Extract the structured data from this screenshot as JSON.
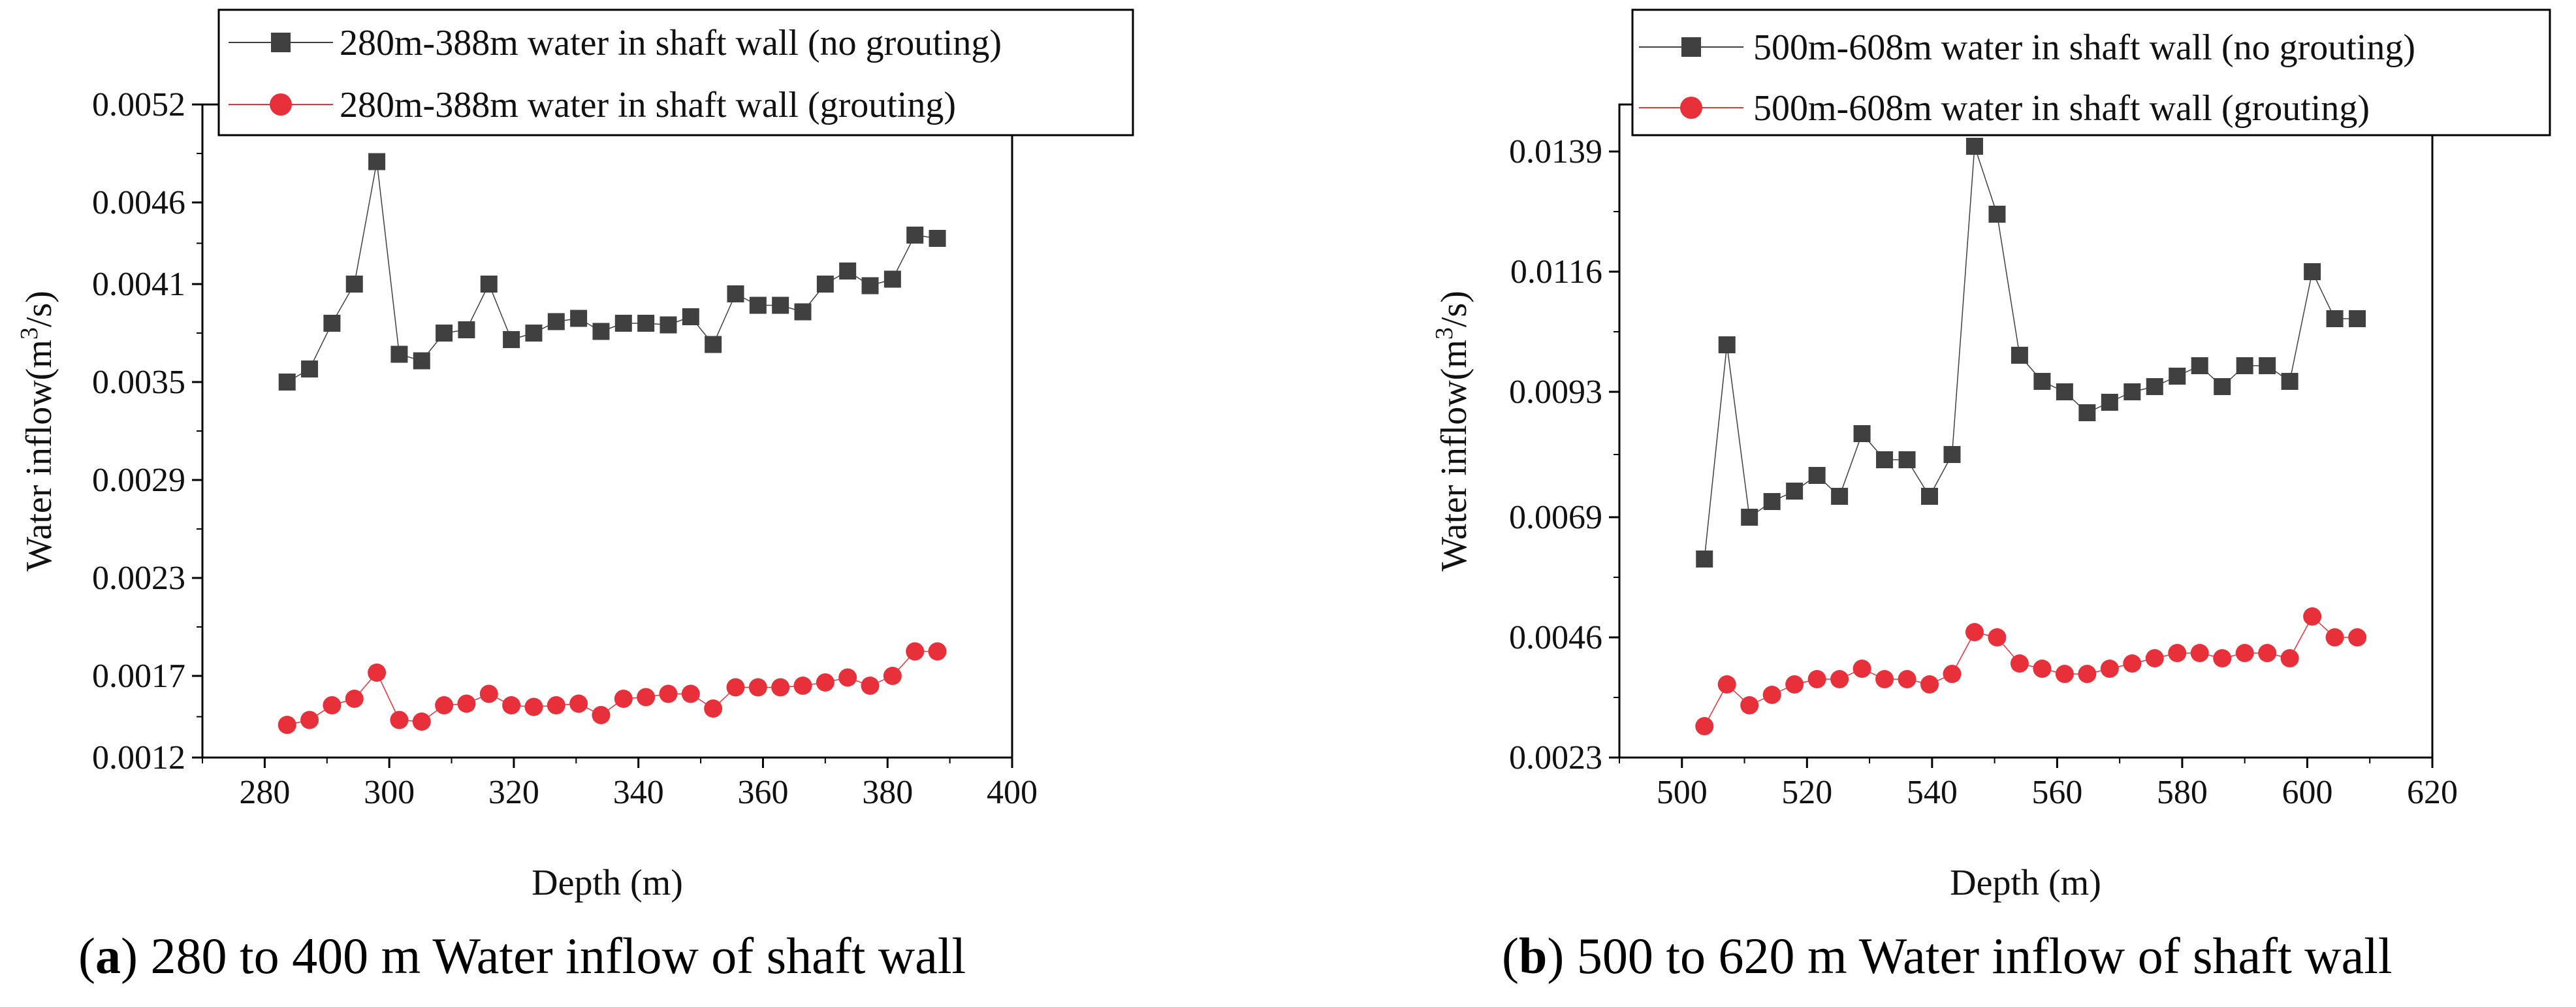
{
  "chart_data": [
    {
      "type": "line",
      "panel": "a",
      "xlabel": "Depth (m)",
      "ylabel_main": "Water inflow(m",
      "ylabel_sup": "3",
      "ylabel_end": "/s)",
      "xlim": [
        270,
        400
      ],
      "ylim": [
        0.0012,
        0.0052
      ],
      "xticks": [
        280,
        300,
        320,
        340,
        360,
        380,
        400
      ],
      "yticks": [
        0.0012,
        0.0017,
        0.0023,
        0.0029,
        0.0035,
        0.0041,
        0.0046,
        0.0052
      ],
      "ytick_labels": [
        "0.0012",
        "0.0017",
        "0.0023",
        "0.0029",
        "0.0035",
        "0.0041",
        "0.0046",
        "0.0052"
      ],
      "legend_position": "top",
      "caption_letter": "a",
      "caption_text": " 280 to 400 m Water inflow of shaft wall",
      "series": [
        {
          "name": "280m-388m water in shaft wall (no grouting)",
          "color": "#404040",
          "marker": "square",
          "x": [
            283.6,
            287.2,
            290.8,
            294.4,
            298.0,
            301.6,
            305.2,
            308.8,
            312.4,
            316.0,
            319.6,
            323.2,
            326.8,
            330.4,
            334.0,
            337.6,
            341.2,
            344.8,
            348.4,
            352.0,
            355.6,
            359.2,
            362.8,
            366.4,
            370.0,
            373.6,
            377.2,
            380.8,
            384.4,
            388.0
          ],
          "y": [
            0.0035,
            0.00358,
            0.00386,
            0.0041,
            0.00485,
            0.00367,
            0.00363,
            0.0038,
            0.00382,
            0.0041,
            0.00376,
            0.0038,
            0.00387,
            0.00389,
            0.00381,
            0.00386,
            0.00386,
            0.00385,
            0.0039,
            0.00373,
            0.00404,
            0.00397,
            0.00397,
            0.00393,
            0.0041,
            0.00418,
            0.00409,
            0.00413,
            0.0044,
            0.00438
          ]
        },
        {
          "name": "280m-388m water in shaft wall (grouting)",
          "color": "#e8303a",
          "marker": "circle",
          "x": [
            283.6,
            287.2,
            290.8,
            294.4,
            298.0,
            301.6,
            305.2,
            308.8,
            312.4,
            316.0,
            319.6,
            323.2,
            326.8,
            330.4,
            334.0,
            337.6,
            341.2,
            344.8,
            348.4,
            352.0,
            355.6,
            359.2,
            362.8,
            366.4,
            370.0,
            373.6,
            377.2,
            380.8,
            384.4,
            388.0
          ],
          "y": [
            0.0014,
            0.00143,
            0.00152,
            0.00156,
            0.00172,
            0.00143,
            0.00142,
            0.00152,
            0.00153,
            0.00159,
            0.00152,
            0.00151,
            0.00152,
            0.00153,
            0.00146,
            0.00156,
            0.00157,
            0.00159,
            0.00159,
            0.0015,
            0.00163,
            0.00163,
            0.00163,
            0.00164,
            0.00166,
            0.00169,
            0.00164,
            0.0017,
            0.00185,
            0.00185
          ]
        }
      ]
    },
    {
      "type": "line",
      "panel": "b",
      "xlabel": "Depth (m)",
      "ylabel_main": "Water inflow(m",
      "ylabel_sup": "3",
      "ylabel_end": "/s)",
      "xlim": [
        490,
        620
      ],
      "ylim": [
        0.0023,
        0.0148
      ],
      "xticks": [
        500,
        520,
        540,
        560,
        580,
        600,
        620
      ],
      "yticks": [
        0.0023,
        0.0046,
        0.0069,
        0.0093,
        0.0116,
        0.0139
      ],
      "ytick_labels": [
        "0.0023",
        "0.0046",
        "0.0069",
        "0.0093",
        "0.0116",
        "0.0139"
      ],
      "legend_position": "top",
      "caption_letter": "b",
      "caption_text": " 500 to 620 m Water inflow of shaft wall",
      "series": [
        {
          "name": "500m-608m water in shaft wall (no grouting)",
          "color": "#404040",
          "marker": "square",
          "x": [
            503.6,
            507.2,
            510.8,
            514.4,
            518.0,
            521.6,
            525.2,
            528.8,
            532.4,
            536.0,
            539.6,
            543.2,
            546.8,
            550.4,
            554.0,
            557.6,
            561.2,
            564.8,
            568.4,
            572.0,
            575.6,
            579.2,
            582.8,
            586.4,
            590.0,
            593.6,
            597.2,
            600.8,
            604.4,
            608.0
          ],
          "y": [
            0.0061,
            0.0102,
            0.0069,
            0.0072,
            0.0074,
            0.0077,
            0.0073,
            0.0085,
            0.008,
            0.008,
            0.0073,
            0.0081,
            0.014,
            0.0127,
            0.01,
            0.0095,
            0.0093,
            0.0089,
            0.0091,
            0.0093,
            0.0094,
            0.0096,
            0.0098,
            0.0094,
            0.0098,
            0.0098,
            0.0095,
            0.0116,
            0.0107,
            0.0107
          ]
        },
        {
          "name": "500m-608m water in shaft wall (grouting)",
          "color": "#e8303a",
          "marker": "circle",
          "x": [
            503.6,
            507.2,
            510.8,
            514.4,
            518.0,
            521.6,
            525.2,
            528.8,
            532.4,
            536.0,
            539.6,
            543.2,
            546.8,
            550.4,
            554.0,
            557.6,
            561.2,
            564.8,
            568.4,
            572.0,
            575.6,
            579.2,
            582.8,
            586.4,
            590.0,
            593.6,
            597.2,
            600.8,
            604.4,
            608.0
          ],
          "y": [
            0.0029,
            0.0037,
            0.0033,
            0.0035,
            0.0037,
            0.0038,
            0.0038,
            0.004,
            0.0038,
            0.0038,
            0.0037,
            0.0039,
            0.0047,
            0.0046,
            0.0041,
            0.004,
            0.0039,
            0.0039,
            0.004,
            0.0041,
            0.0042,
            0.0043,
            0.0043,
            0.0042,
            0.0043,
            0.0043,
            0.0042,
            0.005,
            0.0046,
            0.0046
          ]
        }
      ]
    }
  ]
}
